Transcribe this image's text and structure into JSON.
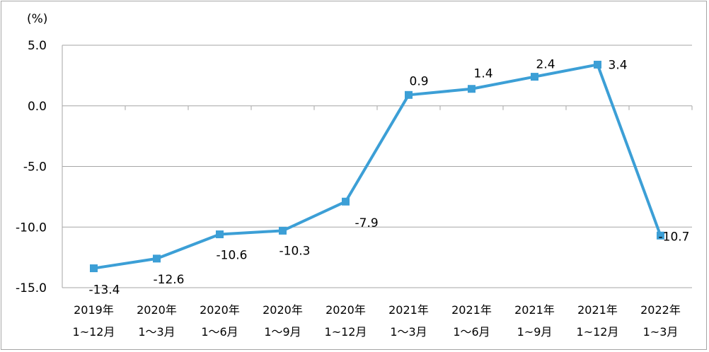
{
  "chart_data": {
    "type": "line",
    "unit_label": "(%)",
    "title": "",
    "xlabel": "",
    "ylabel": "",
    "ylim": [
      -15,
      5
    ],
    "y_ticks": [
      "5.0",
      "0.0",
      "-5.0",
      "-10.0",
      "-15.0"
    ],
    "y_tick_values": [
      5,
      0,
      -5,
      -10,
      -15
    ],
    "grid": true,
    "categories": [
      [
        "2019年",
        "1~12月"
      ],
      [
        "2020年",
        "1～3月"
      ],
      [
        "2020年",
        "1～6月"
      ],
      [
        "2020年",
        "1～9月"
      ],
      [
        "2020年",
        "1~12月"
      ],
      [
        "2021年",
        "1～3月"
      ],
      [
        "2021年",
        "1～6月"
      ],
      [
        "2021年",
        "1~9月"
      ],
      [
        "2021年",
        "1~12月"
      ],
      [
        "2022年",
        "1~3月"
      ]
    ],
    "series": [
      {
        "values": [
          -13.4,
          -12.6,
          -10.6,
          -10.3,
          -7.9,
          0.9,
          1.4,
          2.4,
          3.4,
          -10.7
        ],
        "labels": [
          "-13.4",
          "-12.6",
          "-10.6",
          "-10.3",
          "-7.9",
          "0.9",
          "1.4",
          "2.4",
          "3.4",
          "-10.7"
        ],
        "color": "#3c9fd6"
      }
    ]
  }
}
